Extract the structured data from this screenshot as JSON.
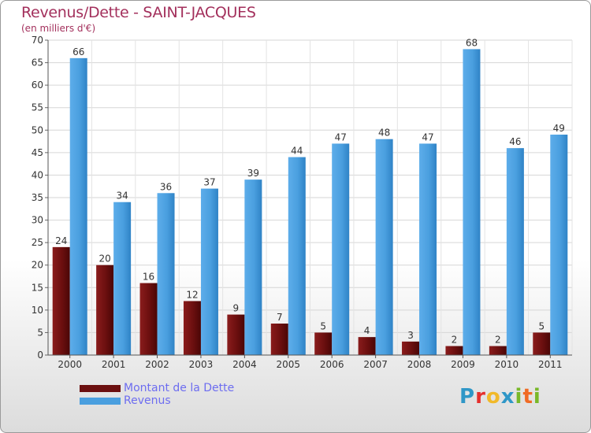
{
  "header": {
    "title": "Revenus/Dette - SAINT-JACQUES",
    "subtitle": "(en milliers d'€)"
  },
  "logo": {
    "text": "Proxiti"
  },
  "colors": {
    "dette": "#6b0f0f",
    "revenus": "#4a9fdf",
    "title": "#a3305c",
    "legend_text": "#6d6df0"
  },
  "chart_data": {
    "type": "bar",
    "title": "Revenus/Dette - SAINT-JACQUES",
    "ylabel": "(en milliers d'€)",
    "categories": [
      "2000",
      "2001",
      "2002",
      "2003",
      "2004",
      "2005",
      "2006",
      "2007",
      "2008",
      "2009",
      "2010",
      "2011"
    ],
    "series": [
      {
        "name": "Montant de la Dette",
        "values": [
          24,
          20,
          16,
          12,
          9,
          7,
          5,
          4,
          3,
          2,
          2,
          5
        ]
      },
      {
        "name": "Revenus",
        "values": [
          66,
          34,
          36,
          37,
          39,
          44,
          47,
          48,
          47,
          68,
          46,
          49
        ]
      }
    ],
    "ylim": [
      0,
      70
    ],
    "yticks": [
      0,
      5,
      10,
      15,
      20,
      25,
      30,
      35,
      40,
      45,
      50,
      55,
      60,
      65,
      70
    ],
    "grid": true,
    "legend": "bottom-left"
  }
}
